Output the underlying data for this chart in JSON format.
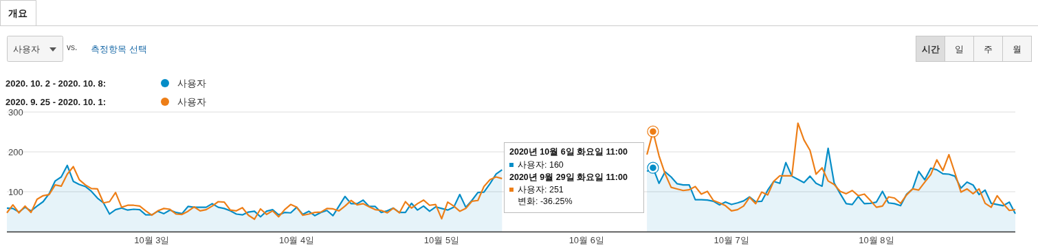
{
  "chart_data": {
    "type": "line",
    "legend": "top left",
    "grid": "y",
    "marker": "none",
    "line_style": "solid",
    "ylim": [
      0,
      300
    ],
    "yticks": [
      100,
      200,
      300
    ],
    "categories": [
      null,
      null,
      null,
      null,
      null,
      null,
      null,
      null,
      null,
      null,
      null,
      null,
      null,
      null,
      null,
      null,
      null,
      null,
      null,
      null,
      null,
      null,
      null,
      null,
      "10월 3일",
      null,
      null,
      null,
      null,
      null,
      null,
      null,
      null,
      null,
      null,
      null,
      null,
      null,
      null,
      null,
      null,
      null,
      null,
      null,
      null,
      null,
      null,
      null,
      "10월 4일",
      null,
      null,
      null,
      null,
      null,
      null,
      null,
      null,
      null,
      null,
      null,
      null,
      null,
      null,
      null,
      null,
      null,
      null,
      null,
      null,
      null,
      null,
      null,
      "10월 5일",
      null,
      null,
      null,
      null,
      null,
      null,
      null,
      null,
      null,
      null,
      null,
      null,
      null,
      null,
      null,
      null,
      null,
      null,
      null,
      null,
      null,
      null,
      null,
      "10월 6일",
      null,
      null,
      null,
      null,
      null,
      null,
      null,
      null,
      null,
      null,
      null,
      null,
      null,
      null,
      null,
      null,
      null,
      null,
      null,
      null,
      null,
      null,
      null,
      "10월 7일",
      null,
      null,
      null,
      null,
      null,
      null,
      null,
      null,
      null,
      null,
      null,
      null,
      null,
      null,
      null,
      null,
      null,
      null,
      null,
      null,
      null,
      null,
      null,
      "10월 8일",
      null,
      null,
      null,
      null,
      null,
      null,
      null,
      null,
      null,
      null,
      null,
      null,
      null,
      null,
      null,
      null,
      null,
      null,
      null,
      null,
      null,
      null,
      null
    ],
    "series": [
      {
        "name": "사용자",
        "type": "area",
        "color": "#058dc7",
        "values": [
          59,
          58,
          49,
          61,
          52,
          64,
          75,
          95,
          127,
          137,
          166,
          126,
          118,
          113,
          101,
          84,
          72,
          44,
          55,
          59,
          54,
          56,
          55,
          42,
          42,
          51,
          45,
          54,
          48,
          45,
          63,
          61,
          61,
          61,
          70,
          61,
          58,
          52,
          44,
          42,
          49,
          51,
          37,
          51,
          55,
          42,
          48,
          47,
          61,
          43,
          51,
          40,
          48,
          53,
          40,
          64,
          88,
          70,
          70,
          79,
          63,
          63,
          48,
          52,
          59,
          48,
          48,
          71,
          54,
          64,
          51,
          62,
          58,
          54,
          61,
          93,
          61,
          78,
          98,
          99,
          120,
          144,
          155,
          null,
          null,
          null,
          null,
          null,
          null,
          null,
          null,
          null,
          null,
          null,
          null,
          null,
          null,
          null,
          null,
          null,
          null,
          null,
          null,
          null,
          null,
          null,
          151,
          160,
          121,
          150,
          137,
          120,
          117,
          117,
          80,
          80,
          79,
          76,
          67,
          74,
          68,
          72,
          77,
          87,
          75,
          76,
          104,
          126,
          121,
          173,
          139,
          131,
          123,
          139,
          121,
          114,
          209,
          122,
          95,
          70,
          68,
          88,
          70,
          71,
          74,
          101,
          72,
          70,
          65,
          94,
          107,
          151,
          130,
          159,
          155,
          145,
          144,
          139,
          109,
          124,
          117,
          93,
          104,
          71,
          68,
          65,
          74,
          45
        ]
      },
      {
        "name": "사용자",
        "color": "#ed7e17",
        "values": [
          47,
          67,
          47,
          64,
          48,
          81,
          90,
          93,
          117,
          114,
          144,
          163,
          130,
          117,
          108,
          107,
          72,
          75,
          98,
          61,
          66,
          66,
          64,
          52,
          41,
          52,
          58,
          56,
          44,
          43,
          51,
          62,
          52,
          55,
          64,
          75,
          74,
          54,
          52,
          60,
          41,
          31,
          57,
          43,
          52,
          37,
          55,
          68,
          61,
          41,
          44,
          48,
          49,
          58,
          57,
          52,
          64,
          78,
          67,
          70,
          62,
          55,
          53,
          47,
          59,
          47,
          75,
          59,
          70,
          79,
          66,
          68,
          32,
          74,
          64,
          51,
          58,
          76,
          78,
          113,
          130,
          137,
          133,
          null,
          null,
          null,
          null,
          null,
          null,
          null,
          null,
          null,
          null,
          null,
          null,
          null,
          null,
          null,
          null,
          null,
          null,
          null,
          null,
          null,
          null,
          null,
          193,
          251,
          190,
          145,
          111,
          107,
          103,
          105,
          113,
          94,
          101,
          78,
          72,
          65,
          52,
          55,
          64,
          86,
          70,
          99,
          92,
          126,
          140,
          140,
          140,
          272,
          230,
          204,
          144,
          160,
          127,
          118,
          101,
          95,
          103,
          90,
          94,
          78,
          61,
          64,
          87,
          84,
          71,
          92,
          107,
          104,
          124,
          143,
          180,
          153,
          193,
          147,
          99,
          107,
          95,
          107,
          71,
          61,
          90,
          70,
          53,
          55
        ]
      }
    ],
    "annotations": [
      "개요",
      "사용자",
      "vs.",
      "측정항목 선택",
      "시간",
      "일",
      "주",
      "월",
      "2020. 10. 2 - 2020. 10. 8:",
      "2020. 9. 25 - 2020. 10. 1:",
      "2020년 10월 6일 화요일 11:00",
      "사용자: 160",
      "2020년 9월 29일 화요일 11:00",
      "사용자: 251",
      "변화: -36.25%"
    ]
  }
}
